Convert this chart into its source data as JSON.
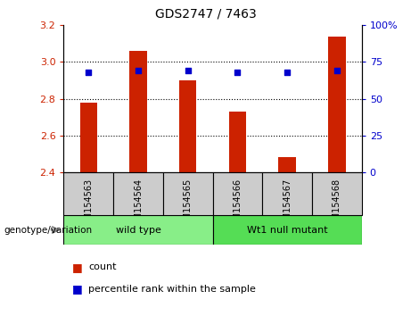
{
  "title": "GDS2747 / 7463",
  "samples": [
    "GSM154563",
    "GSM154564",
    "GSM154565",
    "GSM154566",
    "GSM154567",
    "GSM154568"
  ],
  "count_values": [
    2.78,
    3.06,
    2.9,
    2.73,
    2.48,
    3.14
  ],
  "percentile_values": [
    68,
    69,
    69,
    68,
    68,
    69
  ],
  "ylim_left": [
    2.4,
    3.2
  ],
  "ylim_right": [
    0,
    100
  ],
  "yticks_left": [
    2.4,
    2.6,
    2.8,
    3.0,
    3.2
  ],
  "yticks_right": [
    0,
    25,
    50,
    75,
    100
  ],
  "bar_color": "#cc2200",
  "dot_color": "#0000cc",
  "bg_color": "#ffffff",
  "tick_bg_color": "#cccccc",
  "groups": [
    {
      "label": "wild type",
      "indices": [
        0,
        1,
        2
      ],
      "color": "#88ee88"
    },
    {
      "label": "Wt1 null mutant",
      "indices": [
        3,
        4,
        5
      ],
      "color": "#55dd55"
    }
  ],
  "genotype_label": "genotype/variation",
  "legend_count": "count",
  "legend_percentile": "percentile rank within the sample",
  "tick_label_color_left": "#cc2200",
  "tick_label_color_right": "#0000cc",
  "bar_width": 0.35,
  "dotted_gridlines": [
    3.0,
    2.8,
    2.6
  ],
  "right_ytick_labels": [
    "0",
    "25",
    "50",
    "75",
    "100%"
  ]
}
